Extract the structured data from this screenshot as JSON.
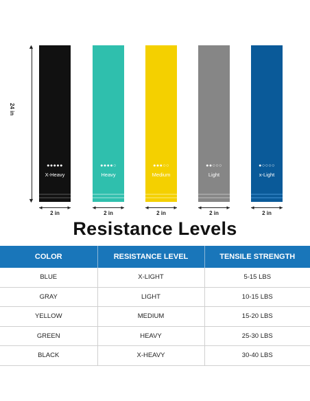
{
  "dimensions": {
    "length": "24 in",
    "width": "2 in"
  },
  "bands": [
    {
      "label": "X-Heavy",
      "dots": "●●●●●",
      "color": "#111111"
    },
    {
      "label": "Heavy",
      "dots": "●●●●○",
      "color": "#2fbfad"
    },
    {
      "label": "Medium",
      "dots": "●●●○○",
      "color": "#f4d000"
    },
    {
      "label": "Light",
      "dots": "●●○○○",
      "color": "#868686"
    },
    {
      "label": "x-Light",
      "dots": "●○○○○",
      "color": "#0a5a99"
    }
  ],
  "title": "Resistance Levels",
  "table": {
    "headers": [
      "COLOR",
      "RESISTANCE LEVEL",
      "TENSILE STRENGTH"
    ],
    "header_color": "#1976ba",
    "rows": [
      [
        "BLUE",
        "X-LIGHT",
        "5-15 LBS"
      ],
      [
        "GRAY",
        "LIGHT",
        "10-15 LBS"
      ],
      [
        "YELLOW",
        "MEDIUM",
        "15-20 LBS"
      ],
      [
        "GREEN",
        "HEAVY",
        "25-30 LBS"
      ],
      [
        "BLACK",
        "X-HEAVY",
        "30-40 LBS"
      ]
    ]
  }
}
